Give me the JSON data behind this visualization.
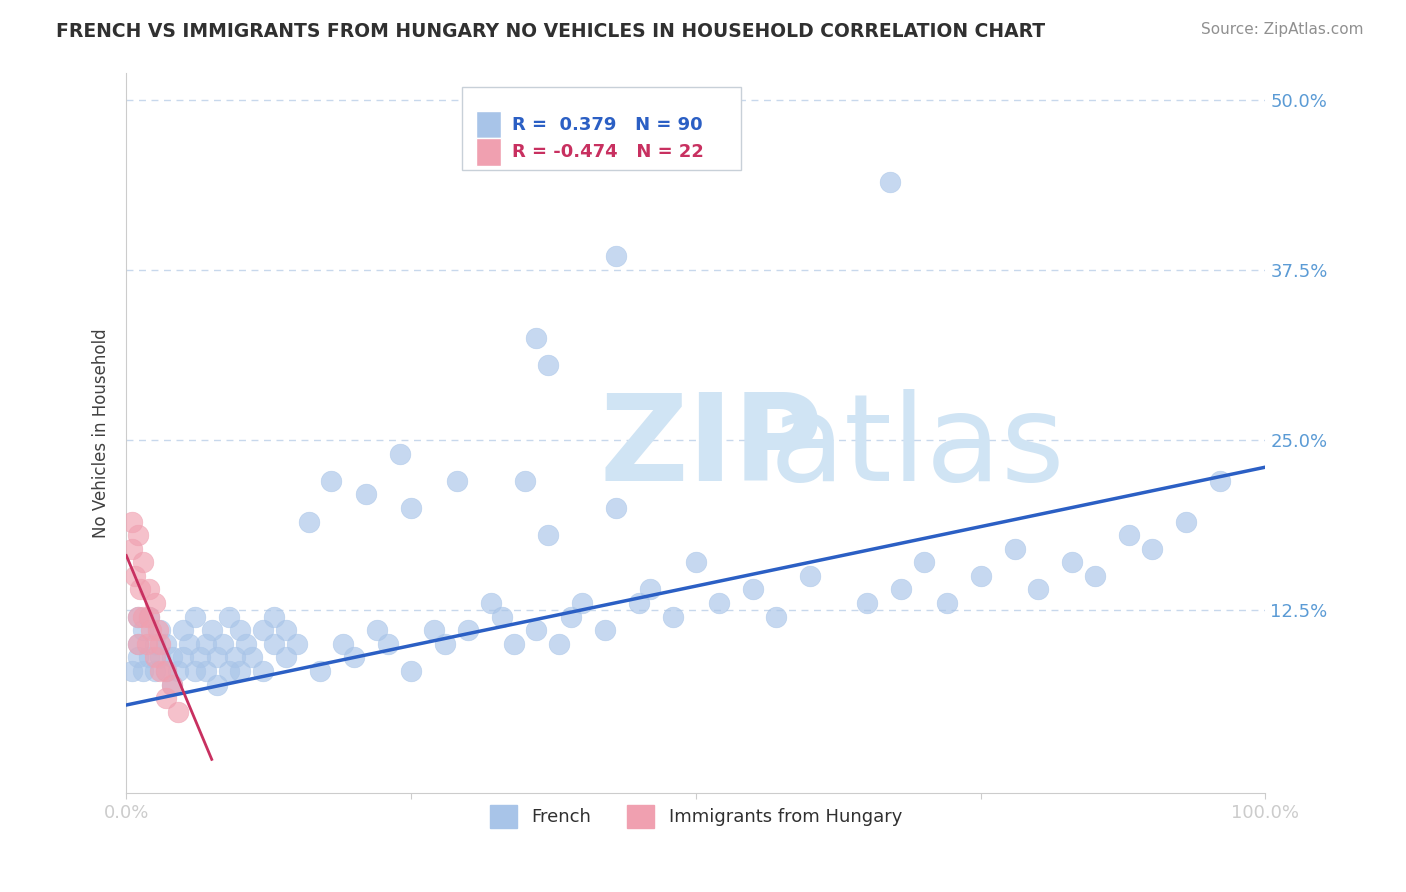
{
  "title": "FRENCH VS IMMIGRANTS FROM HUNGARY NO VEHICLES IN HOUSEHOLD CORRELATION CHART",
  "source_text": "Source: ZipAtlas.com",
  "ylabel": "No Vehicles in Household",
  "watermark": "ZIPatlas",
  "r_french": 0.379,
  "n_french": 90,
  "r_hungary": -0.474,
  "n_hungary": 22,
  "ylim": [
    -0.01,
    0.52
  ],
  "xlim": [
    0.0,
    1.0
  ],
  "blue_color": "#A8C4E8",
  "pink_color": "#F0A0B0",
  "blue_line_color": "#2B5FC4",
  "pink_line_color": "#C83060",
  "title_color": "#303030",
  "source_color": "#909090",
  "axis_label_color": "#404040",
  "tick_label_color": "#5B9BD5",
  "grid_color": "#C8D8EC",
  "watermark_color": "#D0E4F4",
  "legend_border_color": "#C8D0D8",
  "french_x": [
    0.005,
    0.01,
    0.01,
    0.01,
    0.015,
    0.015,
    0.02,
    0.02,
    0.025,
    0.025,
    0.03,
    0.03,
    0.035,
    0.035,
    0.04,
    0.04,
    0.045,
    0.05,
    0.05,
    0.055,
    0.06,
    0.06,
    0.065,
    0.07,
    0.07,
    0.075,
    0.08,
    0.08,
    0.085,
    0.09,
    0.09,
    0.095,
    0.1,
    0.1,
    0.105,
    0.11,
    0.12,
    0.12,
    0.13,
    0.13,
    0.14,
    0.14,
    0.15,
    0.16,
    0.17,
    0.18,
    0.19,
    0.2,
    0.21,
    0.22,
    0.23,
    0.24,
    0.25,
    0.25,
    0.27,
    0.28,
    0.29,
    0.3,
    0.32,
    0.33,
    0.34,
    0.35,
    0.36,
    0.37,
    0.38,
    0.39,
    0.4,
    0.42,
    0.43,
    0.45,
    0.46,
    0.48,
    0.5,
    0.52,
    0.55,
    0.57,
    0.6,
    0.65,
    0.68,
    0.7,
    0.72,
    0.75,
    0.78,
    0.8,
    0.83,
    0.85,
    0.88,
    0.9,
    0.93,
    0.96
  ],
  "french_y": [
    0.08,
    0.12,
    0.1,
    0.09,
    0.11,
    0.08,
    0.09,
    0.12,
    0.1,
    0.08,
    0.09,
    0.11,
    0.1,
    0.08,
    0.09,
    0.07,
    0.08,
    0.11,
    0.09,
    0.1,
    0.08,
    0.12,
    0.09,
    0.1,
    0.08,
    0.11,
    0.09,
    0.07,
    0.1,
    0.08,
    0.12,
    0.09,
    0.11,
    0.08,
    0.1,
    0.09,
    0.11,
    0.08,
    0.1,
    0.12,
    0.09,
    0.11,
    0.1,
    0.19,
    0.08,
    0.22,
    0.1,
    0.09,
    0.21,
    0.11,
    0.1,
    0.24,
    0.08,
    0.2,
    0.11,
    0.1,
    0.22,
    0.11,
    0.13,
    0.12,
    0.1,
    0.22,
    0.11,
    0.18,
    0.1,
    0.12,
    0.13,
    0.11,
    0.2,
    0.13,
    0.14,
    0.12,
    0.16,
    0.13,
    0.14,
    0.12,
    0.15,
    0.13,
    0.14,
    0.16,
    0.13,
    0.15,
    0.17,
    0.14,
    0.16,
    0.15,
    0.18,
    0.17,
    0.19,
    0.22
  ],
  "hungary_x": [
    0.005,
    0.005,
    0.008,
    0.01,
    0.01,
    0.01,
    0.012,
    0.015,
    0.015,
    0.018,
    0.02,
    0.02,
    0.022,
    0.025,
    0.025,
    0.028,
    0.03,
    0.03,
    0.035,
    0.035,
    0.04,
    0.045
  ],
  "hungary_y": [
    0.17,
    0.19,
    0.15,
    0.18,
    0.12,
    0.1,
    0.14,
    0.16,
    0.12,
    0.1,
    0.14,
    0.12,
    0.11,
    0.13,
    0.09,
    0.11,
    0.1,
    0.08,
    0.08,
    0.06,
    0.07,
    0.05
  ]
}
